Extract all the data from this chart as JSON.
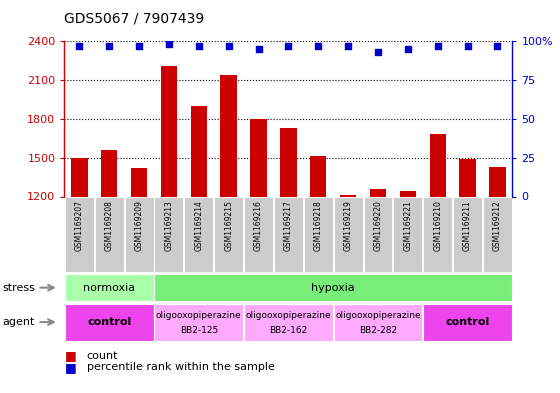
{
  "title": "GDS5067 / 7907439",
  "samples": [
    "GSM1169207",
    "GSM1169208",
    "GSM1169209",
    "GSM1169213",
    "GSM1169214",
    "GSM1169215",
    "GSM1169216",
    "GSM1169217",
    "GSM1169218",
    "GSM1169219",
    "GSM1169220",
    "GSM1169221",
    "GSM1169210",
    "GSM1169211",
    "GSM1169212"
  ],
  "counts": [
    1500,
    1560,
    1420,
    2210,
    1900,
    2140,
    1800,
    1730,
    1510,
    1210,
    1260,
    1240,
    1680,
    1490,
    1430
  ],
  "percentile_ranks": [
    97,
    97,
    97,
    98,
    97,
    97,
    95,
    97,
    97,
    97,
    93,
    95,
    97,
    97,
    97
  ],
  "bar_color": "#cc0000",
  "dot_color": "#0000cc",
  "ylim_left": [
    1200,
    2400
  ],
  "yticks_left": [
    1200,
    1500,
    1800,
    2100,
    2400
  ],
  "ylim_right": [
    0,
    100
  ],
  "yticks_right": [
    0,
    25,
    50,
    75,
    100
  ],
  "left_axis_color": "#cc0000",
  "right_axis_color": "#0000cc",
  "stress_groups": [
    {
      "label": "normoxia",
      "start": 0,
      "end": 3,
      "color": "#aaffaa"
    },
    {
      "label": "hypoxia",
      "start": 3,
      "end": 15,
      "color": "#77ee77"
    }
  ],
  "agent_groups": [
    {
      "label": "control",
      "start": 0,
      "end": 3,
      "color": "#ee44ee",
      "text_lines": [
        "control"
      ],
      "bold": true
    },
    {
      "label": "oligooxopiperazine BB2-125",
      "start": 3,
      "end": 6,
      "color": "#ffaaff",
      "text_lines": [
        "oligooxopiperazine",
        "BB2-125"
      ],
      "bold": false
    },
    {
      "label": "oligooxopiperazine BB2-162",
      "start": 6,
      "end": 9,
      "color": "#ffaaff",
      "text_lines": [
        "oligooxopiperazine",
        "BB2-162"
      ],
      "bold": false
    },
    {
      "label": "oligooxopiperazine BB2-282",
      "start": 9,
      "end": 12,
      "color": "#ffaaff",
      "text_lines": [
        "oligooxopiperazine",
        "BB2-282"
      ],
      "bold": false
    },
    {
      "label": "control",
      "start": 12,
      "end": 15,
      "color": "#ee44ee",
      "text_lines": [
        "control"
      ],
      "bold": true
    }
  ],
  "tick_label_bg": "#cccccc",
  "dotted_grid_values": [
    1500,
    1800,
    2100,
    2400
  ],
  "right_axis_label": "100%"
}
